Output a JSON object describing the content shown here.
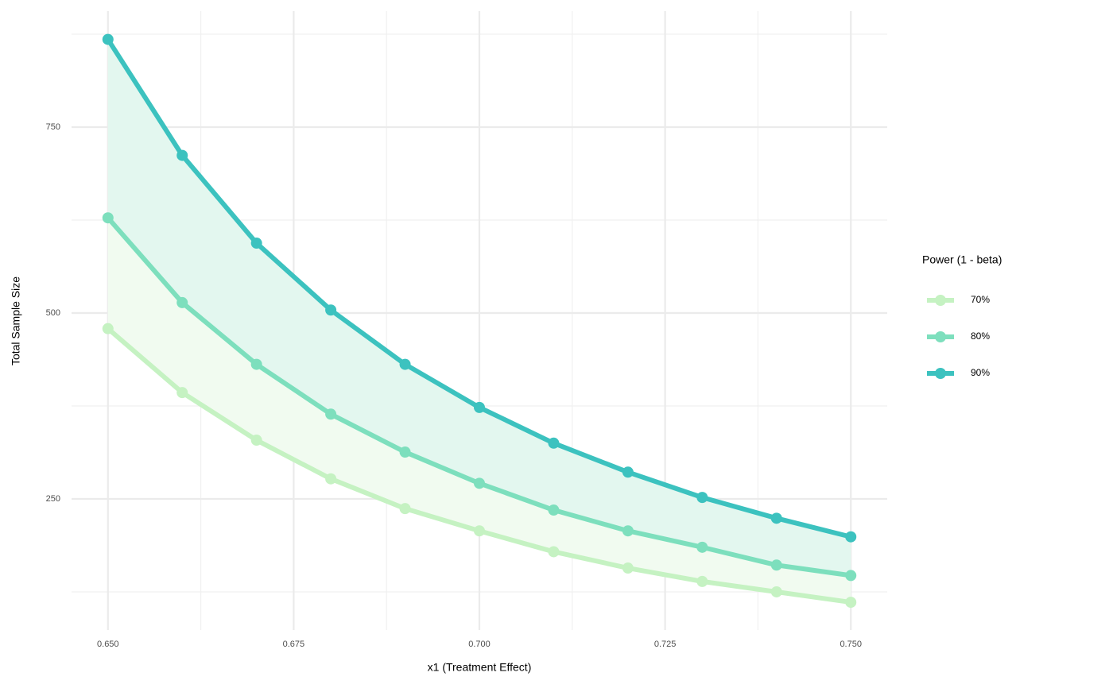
{
  "chart_data": {
    "type": "line",
    "x_label": "x1 (Treatment Effect)",
    "y_label": "Total Sample Size",
    "legend_title": "Power (1 - beta)",
    "legend_position": "right",
    "grid": true,
    "ribbons": true,
    "x": [
      0.65,
      0.66,
      0.67,
      0.68,
      0.69,
      0.7,
      0.71,
      0.72,
      0.73,
      0.74,
      0.75
    ],
    "series": [
      {
        "name": "70%",
        "color": "#c5f2c2",
        "fill": "#f1fbf0",
        "values": [
          479,
          393,
          329,
          277,
          237,
          207,
          179,
          157,
          139,
          125,
          111
        ]
      },
      {
        "name": "80%",
        "color": "#7ddfbd",
        "fill": "#e3f7ef",
        "values": [
          628,
          514,
          431,
          364,
          313,
          271,
          235,
          207,
          185,
          161,
          147
        ]
      },
      {
        "name": "90%",
        "color": "#3cc2bf",
        "fill": "#e3f7ef",
        "values": [
          868,
          712,
          594,
          504,
          431,
          373,
          325,
          286,
          252,
          224,
          199
        ]
      }
    ],
    "xlim": [
      0.6451,
      0.7549
    ],
    "ylim": [
      73.7,
      906
    ],
    "xticks": [
      {
        "value": 0.65,
        "label": "0.650"
      },
      {
        "value": 0.675,
        "label": "0.675"
      },
      {
        "value": 0.7,
        "label": "0.700"
      },
      {
        "value": 0.725,
        "label": "0.725"
      },
      {
        "value": 0.75,
        "label": "0.750"
      }
    ],
    "yticks": [
      250,
      500,
      750
    ]
  }
}
